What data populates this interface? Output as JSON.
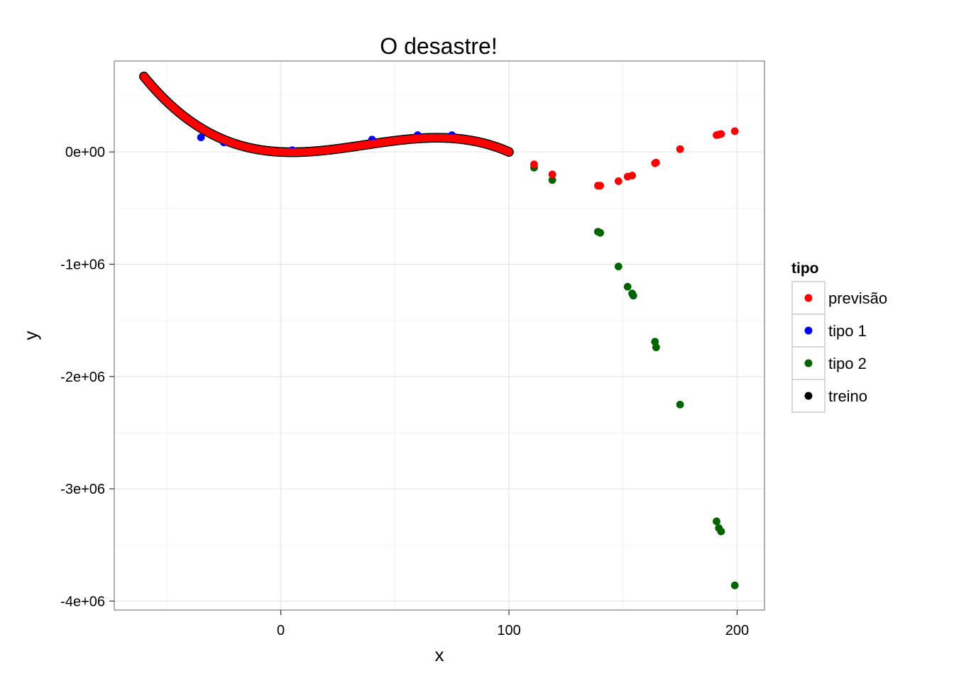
{
  "chart_data": {
    "type": "scatter",
    "title": "O desastre!",
    "xlabel": "x",
    "ylabel": "y",
    "xlim": [
      -73,
      212
    ],
    "ylim": [
      -4080000,
      810000
    ],
    "x_ticks": [
      0,
      100,
      200
    ],
    "x_tick_labels": [
      "0",
      "100",
      "200"
    ],
    "y_ticks": [
      0,
      -1000000,
      -2000000,
      -3000000,
      -4000000
    ],
    "y_tick_labels": [
      "0e+00",
      "-1e+06",
      "-2e+06",
      "-3e+06",
      "-4e+06"
    ],
    "grid": true,
    "legend": {
      "title": "tipo",
      "placement": "right",
      "entries": [
        {
          "label": "previsão",
          "color": "#ff0000"
        },
        {
          "label": "tipo 1",
          "color": "#0000ff"
        },
        {
          "label": "tipo 2",
          "color": "#006400"
        },
        {
          "label": "treino",
          "color": "#000000"
        }
      ]
    },
    "series": [
      {
        "name": "treino",
        "color": "#000000",
        "curve": {
          "x_range": [
            -60,
            100
          ],
          "step": 0.5,
          "poly_coeffs": [
            0,
            -1000,
            110,
            -1
          ]
        },
        "points": []
      },
      {
        "name": "tipo 1",
        "color": "#0000ff",
        "points": [
          [
            -35,
            130000
          ],
          [
            -25,
            85000
          ],
          [
            -12,
            30000
          ],
          [
            5,
            15000
          ],
          [
            40,
            110000
          ],
          [
            60,
            150000
          ],
          [
            75,
            150000
          ]
        ]
      },
      {
        "name": "tipo 2",
        "color": "#006400",
        "points": [
          [
            111,
            -140000
          ],
          [
            119,
            -250000
          ],
          [
            139,
            -710000
          ],
          [
            140,
            -720000
          ],
          [
            148,
            -1020000
          ],
          [
            152,
            -1200000
          ],
          [
            154,
            -1260000
          ],
          [
            154.5,
            -1280000
          ],
          [
            164,
            -1690000
          ],
          [
            164.5,
            -1740000
          ],
          [
            175,
            -2250000
          ],
          [
            191,
            -3290000
          ],
          [
            192,
            -3350000
          ],
          [
            193,
            -3380000
          ],
          [
            199,
            -3860000
          ]
        ]
      },
      {
        "name": "previsão",
        "color": "#ff0000",
        "curve": {
          "x_range": [
            -60,
            100
          ],
          "step": 0.5,
          "poly_coeffs": [
            0,
            -1000,
            110,
            -1
          ]
        },
        "points": [
          [
            111,
            -110000
          ],
          [
            119,
            -200000
          ],
          [
            139,
            -300000
          ],
          [
            140,
            -300000
          ],
          [
            148,
            -260000
          ],
          [
            152,
            -220000
          ],
          [
            154,
            -210000
          ],
          [
            164,
            -100000
          ],
          [
            164.5,
            -95000
          ],
          [
            175,
            25000
          ],
          [
            191,
            150000
          ],
          [
            192,
            155000
          ],
          [
            193,
            160000
          ],
          [
            199,
            185000
          ]
        ]
      }
    ]
  }
}
